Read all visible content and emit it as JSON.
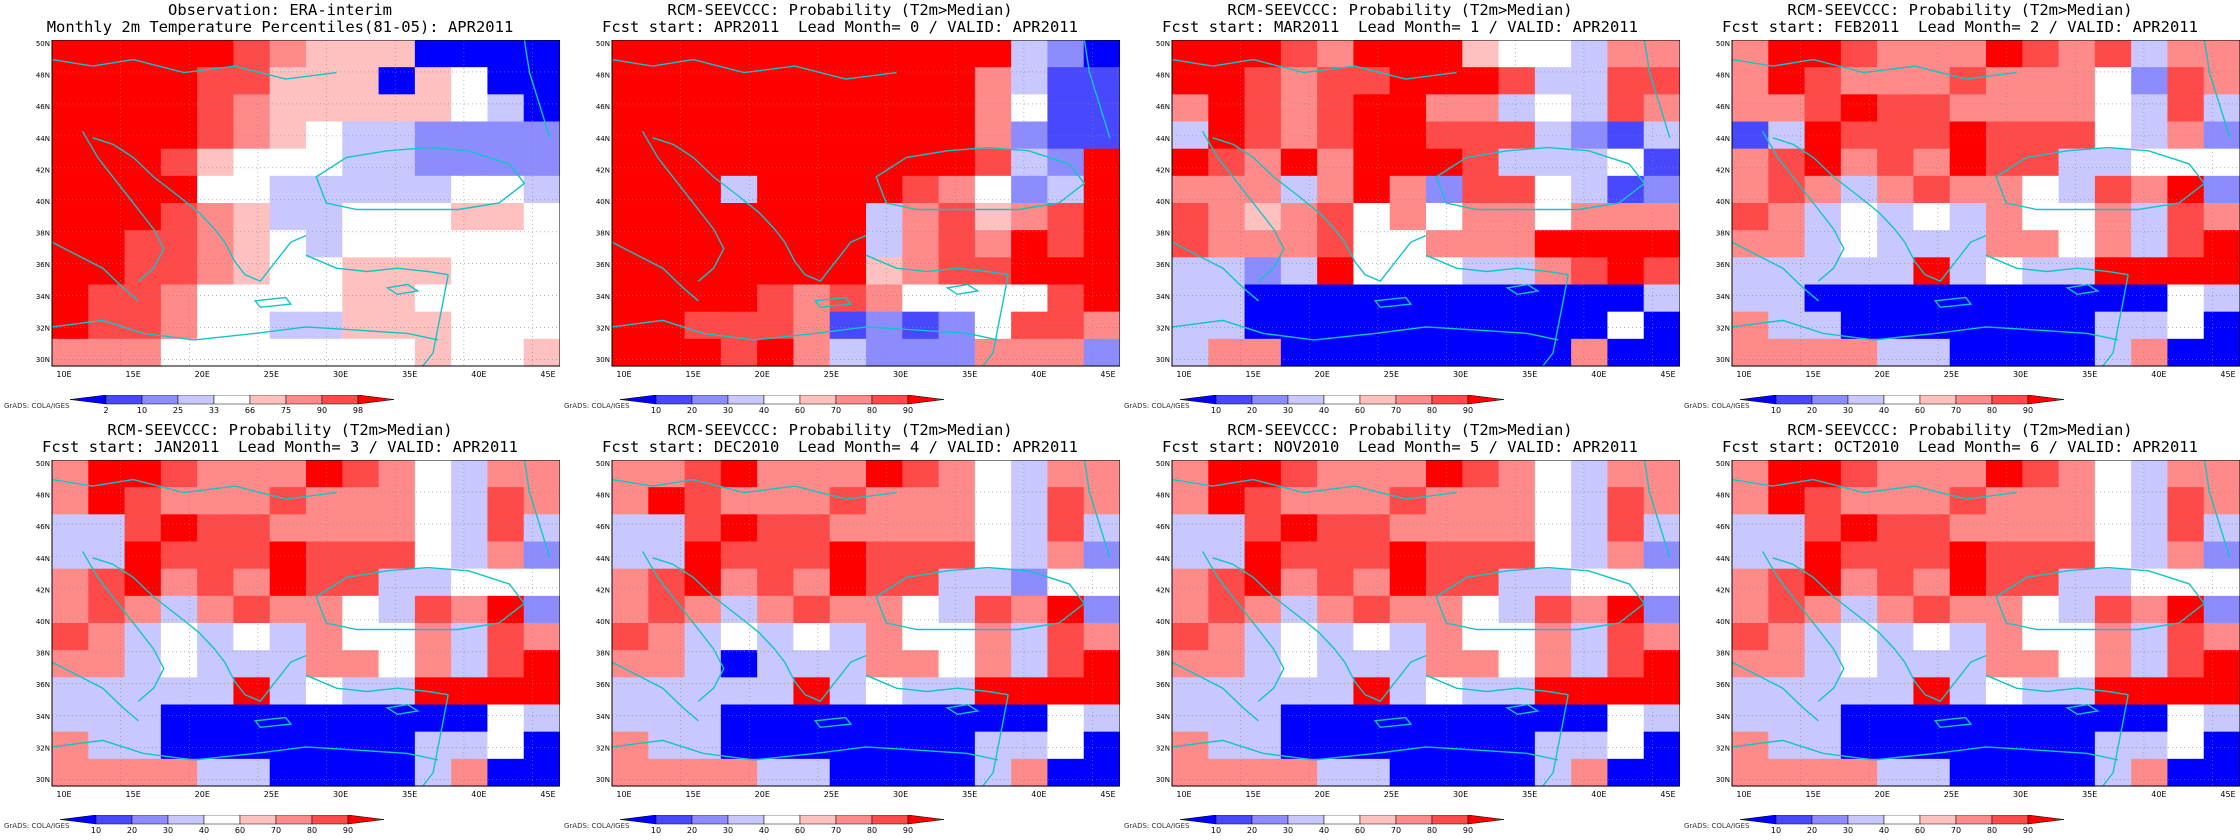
{
  "credit": "GrADS: COLA/IGES",
  "lon_ticks": [
    "10E",
    "15E",
    "20E",
    "25E",
    "30E",
    "35E",
    "40E",
    "45E"
  ],
  "lat_ticks": [
    "30N",
    "32N",
    "34N",
    "36N",
    "38N",
    "40N",
    "42N",
    "44N",
    "46N",
    "48N",
    "50N"
  ],
  "colorbars": {
    "obs": {
      "labels": [
        "2",
        "10",
        "25",
        "33",
        "66",
        "75",
        "90",
        "98"
      ],
      "colors": [
        "#0000ff",
        "#4848ff",
        "#8c8cff",
        "#c8c8ff",
        "#ffffff",
        "#ffc0c0",
        "#ff8a8a",
        "#ff4a4a",
        "#ff0000"
      ]
    },
    "prob": {
      "labels": [
        "10",
        "20",
        "30",
        "40",
        "60",
        "70",
        "80",
        "90"
      ],
      "colors": [
        "#0000ff",
        "#4848ff",
        "#8c8cff",
        "#c8c8ff",
        "#ffffff",
        "#ffc0c0",
        "#ff8a8a",
        "#ff4a4a",
        "#ff0000"
      ]
    }
  },
  "panels": [
    {
      "title1": "Observation: ERA-interim",
      "title2": "Monthly 2m Temperature Percentiles(81-05): APR2011",
      "bar": "obs",
      "grid": [
        "88888765550000",
        "88887755505400",
        "88887655555430",
        "88887654332222",
        "88875444332222",
        "88884433333443",
        "88876533444554",
        "88776543444444",
        "88776544555444",
        "87764444554444",
        "87764433555444",
        "66644444445445"
      ]
    },
    {
      "title1": "RCM-SEEVCCC: Probability (T2m>Median)",
      "title2": "Fcst start: APR2011  Lead Month= 0 / VALID: APR2011",
      "bar": "prob",
      "grid": [
        "88888888888320",
        "88888888886311",
        "88888888886411",
        "88888888886211",
        "88888888887328",
        "88838888764238",
        "88888883675678",
        "88888883676878",
        "88888885677888",
        "88887676444478",
        "88777612124776",
        "88878632226662"
      ]
    },
    {
      "title1": "RCM-SEEVCCC: Probability (T2m>Median)",
      "title2": "Fcst start: MAR2011  Lead Month= 1 / VALID: APR2011",
      "bar": "prob",
      "grid": [
        "88876888544366",
        "88767788873377",
        "68767886634376",
        "38767887773213",
        "87686888733341",
        "66636862774312",
        "76567464664666",
        "76667446668888",
        "33238444336787",
        "33000000000003",
        "33000000000040",
        "36600000000600"
      ]
    },
    {
      "title1": "RCM-SEEVCCC: Probability (T2m>Median)",
      "title2": "Fcst start: FEB2011  Lead Month= 2 / VALID: APR2011",
      "bar": "prob",
      "grid": [
        "68876668767366",
        "68766676664276",
        "66787766664373",
        "13877787774362",
        "67867687733444",
        "67636766437682",
        "76343436446376",
        "66343336646378",
        "33333834338888",
        "33000000000043",
        "63300000003340",
        "66663300003600"
      ]
    },
    {
      "title1": "RCM-SEEVCCC: Probability (T2m>Median)",
      "title2": "Fcst start: JAN2011  Lead Month= 3 / VALID: APR2011",
      "bar": "prob",
      "grid": [
        "68876668764366",
        "68766676664376",
        "33787766664373",
        "33877787774362",
        "67867687733444",
        "67636766437682",
        "76343436446376",
        "66343336646378",
        "33333834338888",
        "33300000000043",
        "63300000003340",
        "66663300003600"
      ]
    },
    {
      "title1": "RCM-SEEVCCC: Probability (T2m>Median)",
      "title2": "Fcst start: DEC2010  Lead Month= 4 / VALID: APR2011",
      "bar": "prob",
      "grid": [
        "66786668764366",
        "68766676664376",
        "33787766664373",
        "33877787774362",
        "67867687733244",
        "67636766437682",
        "76343436446376",
        "66303336646378",
        "33333834338888",
        "33300000000043",
        "63300000003340",
        "66663300003600"
      ]
    },
    {
      "title1": "RCM-SEEVCCC: Probability (T2m>Median)",
      "title2": "Fcst start: NOV2010  Lead Month= 5 / VALID: APR2011",
      "bar": "prob",
      "grid": [
        "68876668764366",
        "68766676664376",
        "33787766664373",
        "33877787774362",
        "67867687733444",
        "67636766437682",
        "76343436446376",
        "66343336646378",
        "33333834338888",
        "33300000000043",
        "63300000003340",
        "66663300003600"
      ]
    },
    {
      "title1": "RCM-SEEVCCC: Probability (T2m>Median)",
      "title2": "Fcst start: OCT2010  Lead Month= 6 / VALID: APR2011",
      "bar": "prob",
      "grid": [
        "68876668764366",
        "68766676664376",
        "33787766664373",
        "33877787774362",
        "67867687733444",
        "67636766437682",
        "76343436446376",
        "66343336646378",
        "33333834338888",
        "33300000000043",
        "63300000003340",
        "66663300003600"
      ]
    }
  ]
}
